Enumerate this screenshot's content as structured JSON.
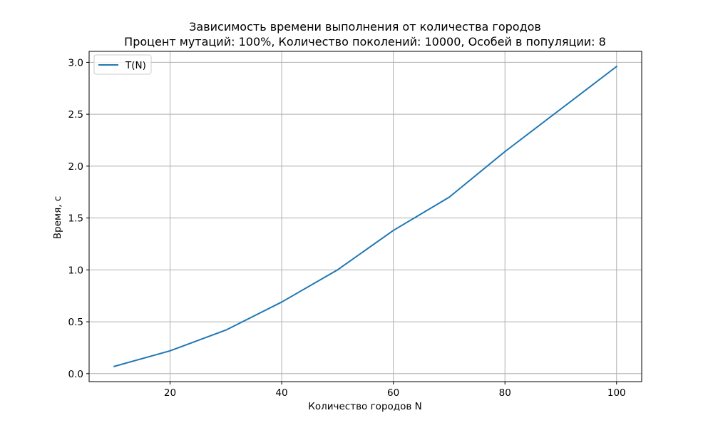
{
  "chart_data": {
    "type": "line",
    "title": "Зависимость времени выполнения от количества городов",
    "subtitle": "Процент мутаций: 100%, Количество поколений: 10000, Особей в популяции: 8",
    "xlabel": "Количество городов N",
    "ylabel": "Время, с",
    "xlim": [
      5.5,
      104.5
    ],
    "ylim": [
      -0.077,
      3.106
    ],
    "xticks": [
      20,
      40,
      60,
      80,
      100
    ],
    "xtick_labels": [
      "20",
      "40",
      "60",
      "80",
      "100"
    ],
    "yticks": [
      0.0,
      0.5,
      1.0,
      1.5,
      2.0,
      2.5,
      3.0
    ],
    "ytick_labels": [
      "0.0",
      "0.5",
      "1.0",
      "1.5",
      "2.0",
      "2.5",
      "3.0"
    ],
    "grid": true,
    "legend_position": "upper left",
    "series": [
      {
        "name": "T(N)",
        "color": "#1f77b4",
        "x": [
          10,
          20,
          30,
          40,
          50,
          60,
          70,
          80,
          90,
          100
        ],
        "y": [
          0.07,
          0.22,
          0.42,
          0.69,
          1.0,
          1.38,
          1.7,
          2.14,
          2.55,
          2.96
        ]
      }
    ]
  }
}
